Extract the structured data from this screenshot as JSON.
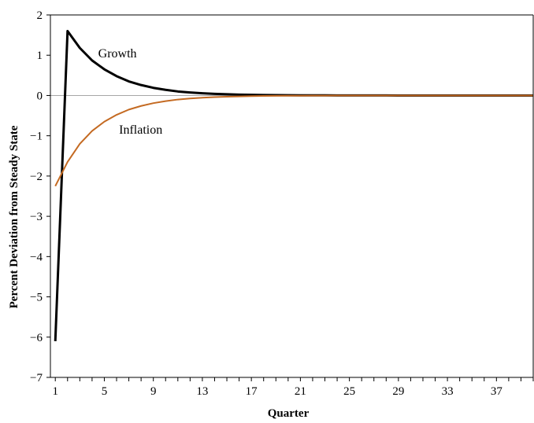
{
  "chart_data": {
    "type": "line",
    "title": "",
    "xlabel": "Quarter",
    "ylabel": "Percent Deviation from Steady State",
    "xlim": [
      0.6,
      40
    ],
    "ylim": [
      -7,
      2
    ],
    "yticks": [
      2,
      1,
      0,
      -1,
      -2,
      -3,
      -4,
      -5,
      -6,
      -7
    ],
    "ytick_labels": [
      "2",
      "1",
      "0",
      "−1",
      "−2",
      "−3",
      "−4",
      "−5",
      "−6",
      "−7"
    ],
    "xtick_labels": [
      "1",
      "5",
      "9",
      "13",
      "17",
      "21",
      "25",
      "29",
      "33",
      "37"
    ],
    "xtick_label_values": [
      1,
      5,
      9,
      13,
      17,
      21,
      25,
      29,
      33,
      37
    ],
    "x": [
      1,
      2,
      3,
      4,
      5,
      6,
      7,
      8,
      9,
      10,
      11,
      12,
      13,
      14,
      15,
      16,
      17,
      18,
      19,
      20,
      21,
      22,
      23,
      24,
      25,
      26,
      27,
      28,
      29,
      30,
      31,
      32,
      33,
      34,
      35,
      36,
      37,
      38,
      39,
      40
    ],
    "series": [
      {
        "name": "Growth",
        "color": "#000000",
        "values": [
          -6.1,
          1.6,
          1.18,
          0.87,
          0.65,
          0.48,
          0.35,
          0.26,
          0.19,
          0.14,
          0.1,
          0.075,
          0.055,
          0.04,
          0.03,
          0.022,
          0.016,
          0.012,
          0.009,
          0.006,
          0.005,
          0.004,
          0.003,
          0.002,
          0.002,
          0.001,
          0.001,
          0.001,
          0.0,
          0.0,
          0.0,
          0.0,
          0.0,
          0.0,
          0.0,
          0.0,
          0.0,
          0.0,
          0.0,
          0.0
        ]
      },
      {
        "name": "Inflation",
        "color": "#C46A22",
        "values": [
          -2.25,
          -1.65,
          -1.2,
          -0.88,
          -0.65,
          -0.48,
          -0.35,
          -0.26,
          -0.19,
          -0.14,
          -0.1,
          -0.075,
          -0.055,
          -0.04,
          -0.03,
          -0.022,
          -0.016,
          -0.012,
          -0.009,
          -0.006,
          -0.005,
          -0.004,
          -0.003,
          -0.002,
          -0.002,
          -0.001,
          -0.001,
          -0.001,
          0.0,
          0.0,
          0.0,
          0.0,
          0.0,
          0.0,
          0.0,
          0.0,
          0.0,
          0.0,
          0.0,
          0.0
        ]
      }
    ],
    "annotations": [
      {
        "text": "Growth",
        "x": 4.5,
        "y": 0.95
      },
      {
        "text": "Inflation",
        "x": 6.2,
        "y": -0.95
      }
    ],
    "grid": false,
    "zero_line": true,
    "legend": "none"
  }
}
